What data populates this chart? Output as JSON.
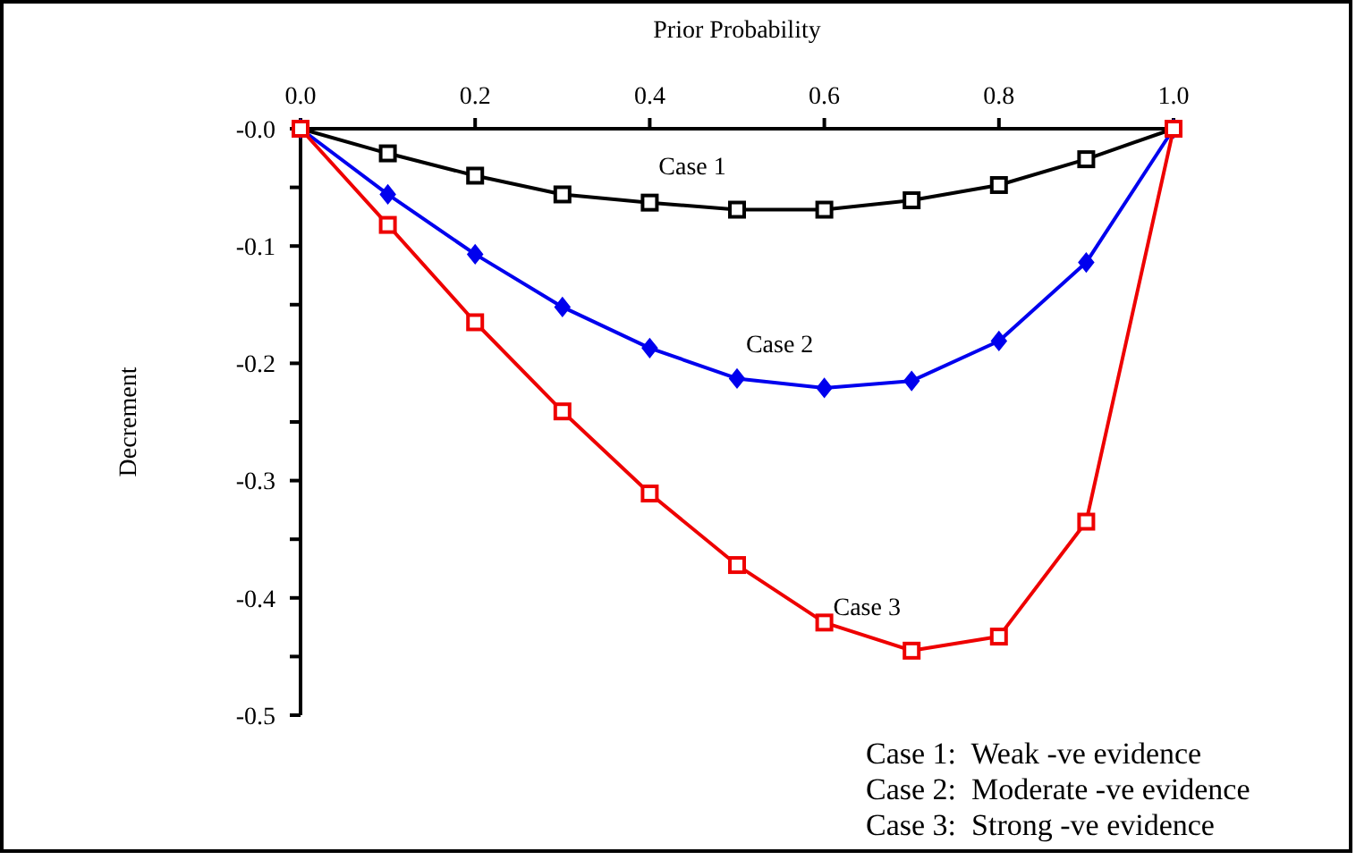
{
  "chart_data": {
    "type": "line",
    "xlabel": "Prior Probability",
    "ylabel": "Decrement",
    "x": [
      0,
      0.1,
      0.2,
      0.3,
      0.4,
      0.5,
      0.6,
      0.7,
      0.8,
      0.9,
      1.0
    ],
    "xlim": [
      0,
      1
    ],
    "xticks": [
      {
        "value": 0,
        "label": "0.0"
      },
      {
        "value": 0.2,
        "label": "0.2"
      },
      {
        "value": 0.4,
        "label": "0.4"
      },
      {
        "value": 0.6,
        "label": "0.6"
      },
      {
        "value": 0.8,
        "label": "0.8"
      },
      {
        "value": 1,
        "label": "1.0"
      }
    ],
    "ylim": [
      -0.5,
      0
    ],
    "yticks": [
      {
        "value": 0,
        "label": "-0.0"
      },
      {
        "value": -0.05,
        "label": null
      },
      {
        "value": -0.1,
        "label": "-0.1"
      },
      {
        "value": -0.15,
        "label": null
      },
      {
        "value": -0.2,
        "label": "-0.2"
      },
      {
        "value": -0.25,
        "label": null
      },
      {
        "value": -0.3,
        "label": "-0.3"
      },
      {
        "value": -0.35,
        "label": null
      },
      {
        "value": -0.4,
        "label": "-0.4"
      },
      {
        "value": -0.45,
        "label": null
      },
      {
        "value": -0.5,
        "label": "-0.5"
      }
    ],
    "grid": false,
    "line_style": "solid",
    "series": [
      {
        "name": "Case 1",
        "color": "#000000",
        "marker": "square",
        "values": [
          0,
          -0.021,
          -0.04,
          -0.056,
          -0.063,
          -0.069,
          -0.069,
          -0.061,
          -0.048,
          -0.026,
          0
        ]
      },
      {
        "name": "Case 2",
        "color": "#0000ee",
        "marker": "diamond",
        "values": [
          0,
          -0.056,
          -0.107,
          -0.152,
          -0.187,
          -0.213,
          -0.221,
          -0.215,
          -0.181,
          -0.114,
          0
        ]
      },
      {
        "name": "Case 3",
        "color": "#ee0000",
        "marker": "square",
        "values": [
          0,
          -0.082,
          -0.165,
          -0.241,
          -0.311,
          -0.372,
          -0.421,
          -0.445,
          -0.433,
          -0.335,
          0
        ]
      }
    ],
    "annotations": [
      "Case 1:  Weak -ve evidence",
      "Case 2:  Moderate -ve evidence",
      "Case 3:  Strong -ve evidence"
    ]
  }
}
